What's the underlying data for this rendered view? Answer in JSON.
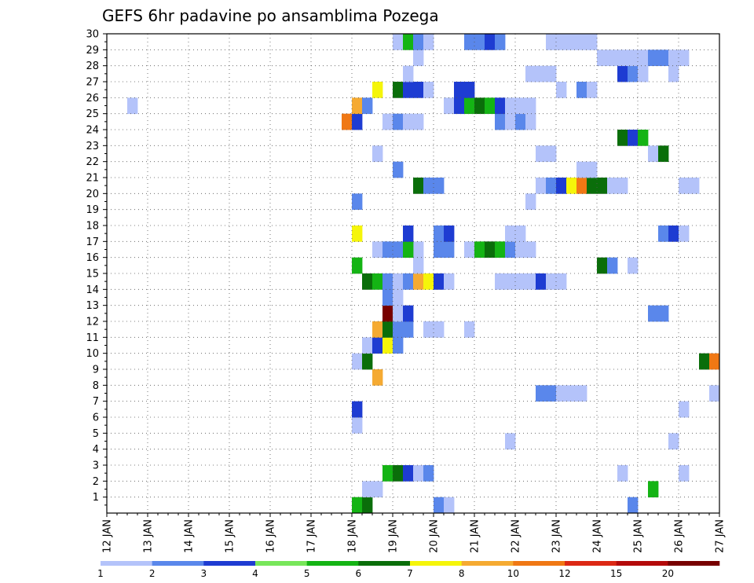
{
  "chart_data": {
    "type": "heatmap",
    "title": "GEFS 6hr padavine po ansamblima Pozega",
    "xlabel": "",
    "ylabel": "",
    "x_range": [
      "12 JAN 00Z",
      "27 JAN 00Z"
    ],
    "x_step": "6 hours",
    "y_range": [
      0,
      30
    ],
    "grid": true,
    "x_ticks": [
      "12 JAN",
      "13 JAN",
      "14 JAN",
      "15 JAN",
      "16 JAN",
      "17 JAN",
      "18 JAN",
      "19 JAN",
      "20 JAN",
      "21 JAN",
      "22 JAN",
      "23 JAN",
      "24 JAN",
      "25 JAN",
      "26 JAN",
      "27 JAN"
    ],
    "y_ticks": [
      "1",
      "2",
      "3",
      "4",
      "5",
      "6",
      "7",
      "8",
      "9",
      "10",
      "11",
      "12",
      "13",
      "14",
      "15",
      "16",
      "17",
      "18",
      "19",
      "20",
      "21",
      "22",
      "23",
      "24",
      "25",
      "26",
      "27",
      "28",
      "29",
      "30"
    ],
    "legend": {
      "labels": [
        "1",
        "2",
        "3",
        "4",
        "5",
        "6",
        "7",
        "8",
        "10",
        "12",
        "15",
        "20"
      ],
      "colors": [
        "#b4c3fa",
        "#5a87eb",
        "#1e3cd2",
        "#78e65a",
        "#14b414",
        "#0a6e0a",
        "#f5f50a",
        "#f5aa32",
        "#f07814",
        "#dc2814",
        "#b40a0a",
        "#780000"
      ]
    },
    "cells": [
      {
        "x": "18 JAN 00Z",
        "y": 0,
        "v": "5"
      },
      {
        "x": "18 JAN 06Z",
        "y": 0,
        "v": "6"
      },
      {
        "x": "20 JAN 00Z",
        "y": 0,
        "v": "2"
      },
      {
        "x": "20 JAN 06Z",
        "y": 0,
        "v": "1"
      },
      {
        "x": "24 JAN 18Z",
        "y": 0,
        "v": "2"
      },
      {
        "x": "18 JAN 06Z",
        "y": 1,
        "v": "1"
      },
      {
        "x": "18 JAN 12Z",
        "y": 1,
        "v": "1"
      },
      {
        "x": "25 JAN 06Z",
        "y": 1,
        "v": "5"
      },
      {
        "x": "18 JAN 18Z",
        "y": 2,
        "v": "5"
      },
      {
        "x": "19 JAN 00Z",
        "y": 2,
        "v": "6"
      },
      {
        "x": "19 JAN 06Z",
        "y": 2,
        "v": "3"
      },
      {
        "x": "19 JAN 12Z",
        "y": 2,
        "v": "1"
      },
      {
        "x": "19 JAN 18Z",
        "y": 2,
        "v": "2"
      },
      {
        "x": "24 JAN 12Z",
        "y": 2,
        "v": "1"
      },
      {
        "x": "26 JAN 00Z",
        "y": 2,
        "v": "1"
      },
      {
        "x": "21 JAN 18Z",
        "y": 4,
        "v": "1"
      },
      {
        "x": "25 JAN 18Z",
        "y": 4,
        "v": "1"
      },
      {
        "x": "18 JAN 00Z",
        "y": 5,
        "v": "1"
      },
      {
        "x": "18 JAN 00Z",
        "y": 6,
        "v": "3"
      },
      {
        "x": "26 JAN 00Z",
        "y": 6,
        "v": "1"
      },
      {
        "x": "22 JAN 12Z",
        "y": 7,
        "v": "2"
      },
      {
        "x": "22 JAN 18Z",
        "y": 7,
        "v": "2"
      },
      {
        "x": "23 JAN 00Z",
        "y": 7,
        "v": "1"
      },
      {
        "x": "23 JAN 06Z",
        "y": 7,
        "v": "1"
      },
      {
        "x": "23 JAN 12Z",
        "y": 7,
        "v": "1"
      },
      {
        "x": "26 JAN 18Z",
        "y": 7,
        "v": "1"
      },
      {
        "x": "18 JAN 12Z",
        "y": 8,
        "v": "8"
      },
      {
        "x": "18 JAN 00Z",
        "y": 9,
        "v": "1"
      },
      {
        "x": "18 JAN 06Z",
        "y": 9,
        "v": "6"
      },
      {
        "x": "26 JAN 12Z",
        "y": 9,
        "v": "6"
      },
      {
        "x": "26 JAN 18Z",
        "y": 9,
        "v": "10"
      },
      {
        "x": "18 JAN 06Z",
        "y": 10,
        "v": "1"
      },
      {
        "x": "18 JAN 12Z",
        "y": 10,
        "v": "3"
      },
      {
        "x": "18 JAN 18Z",
        "y": 10,
        "v": "7"
      },
      {
        "x": "19 JAN 00Z",
        "y": 10,
        "v": "2"
      },
      {
        "x": "18 JAN 12Z",
        "y": 11,
        "v": "8"
      },
      {
        "x": "18 JAN 18Z",
        "y": 11,
        "v": "6"
      },
      {
        "x": "19 JAN 00Z",
        "y": 11,
        "v": "2"
      },
      {
        "x": "19 JAN 06Z",
        "y": 11,
        "v": "2"
      },
      {
        "x": "19 JAN 18Z",
        "y": 11,
        "v": "1"
      },
      {
        "x": "20 JAN 00Z",
        "y": 11,
        "v": "1"
      },
      {
        "x": "20 JAN 18Z",
        "y": 11,
        "v": "1"
      },
      {
        "x": "18 JAN 18Z",
        "y": 12,
        "v": "20"
      },
      {
        "x": "19 JAN 00Z",
        "y": 12,
        "v": "1"
      },
      {
        "x": "19 JAN 06Z",
        "y": 12,
        "v": "3"
      },
      {
        "x": "25 JAN 06Z",
        "y": 12,
        "v": "2"
      },
      {
        "x": "25 JAN 12Z",
        "y": 12,
        "v": "2"
      },
      {
        "x": "18 JAN 18Z",
        "y": 13,
        "v": "2"
      },
      {
        "x": "19 JAN 00Z",
        "y": 13,
        "v": "1"
      },
      {
        "x": "18 JAN 06Z",
        "y": 14,
        "v": "6"
      },
      {
        "x": "18 JAN 12Z",
        "y": 14,
        "v": "5"
      },
      {
        "x": "18 JAN 18Z",
        "y": 14,
        "v": "2"
      },
      {
        "x": "19 JAN 00Z",
        "y": 14,
        "v": "1"
      },
      {
        "x": "19 JAN 06Z",
        "y": 14,
        "v": "2"
      },
      {
        "x": "19 JAN 12Z",
        "y": 14,
        "v": "8"
      },
      {
        "x": "19 JAN 18Z",
        "y": 14,
        "v": "7"
      },
      {
        "x": "20 JAN 00Z",
        "y": 14,
        "v": "3"
      },
      {
        "x": "20 JAN 06Z",
        "y": 14,
        "v": "1"
      },
      {
        "x": "21 JAN 12Z",
        "y": 14,
        "v": "1"
      },
      {
        "x": "21 JAN 18Z",
        "y": 14,
        "v": "1"
      },
      {
        "x": "22 JAN 00Z",
        "y": 14,
        "v": "1"
      },
      {
        "x": "22 JAN 06Z",
        "y": 14,
        "v": "1"
      },
      {
        "x": "22 JAN 12Z",
        "y": 14,
        "v": "3"
      },
      {
        "x": "22 JAN 18Z",
        "y": 14,
        "v": "1"
      },
      {
        "x": "23 JAN 00Z",
        "y": 14,
        "v": "1"
      },
      {
        "x": "18 JAN 00Z",
        "y": 15,
        "v": "5"
      },
      {
        "x": "19 JAN 12Z",
        "y": 15,
        "v": "1"
      },
      {
        "x": "24 JAN 00Z",
        "y": 15,
        "v": "6"
      },
      {
        "x": "24 JAN 06Z",
        "y": 15,
        "v": "2"
      },
      {
        "x": "24 JAN 18Z",
        "y": 15,
        "v": "1"
      },
      {
        "x": "19 JAN 12Z",
        "y": 16,
        "v": "1"
      },
      {
        "x": "18 JAN 12Z",
        "y": 16,
        "v": "1"
      },
      {
        "x": "18 JAN 18Z",
        "y": 16,
        "v": "2"
      },
      {
        "x": "19 JAN 00Z",
        "y": 16,
        "v": "2"
      },
      {
        "x": "19 JAN 06Z",
        "y": 16,
        "v": "5"
      },
      {
        "x": "20 JAN 00Z",
        "y": 16,
        "v": "2"
      },
      {
        "x": "20 JAN 06Z",
        "y": 16,
        "v": "2"
      },
      {
        "x": "20 JAN 18Z",
        "y": 16,
        "v": "1"
      },
      {
        "x": "21 JAN 00Z",
        "y": 16,
        "v": "5"
      },
      {
        "x": "21 JAN 06Z",
        "y": 16,
        "v": "6"
      },
      {
        "x": "21 JAN 12Z",
        "y": 16,
        "v": "5"
      },
      {
        "x": "21 JAN 18Z",
        "y": 16,
        "v": "2"
      },
      {
        "x": "22 JAN 00Z",
        "y": 16,
        "v": "1"
      },
      {
        "x": "22 JAN 06Z",
        "y": 16,
        "v": "1"
      },
      {
        "x": "18 JAN 00Z",
        "y": 17,
        "v": "7"
      },
      {
        "x": "19 JAN 06Z",
        "y": 17,
        "v": "3"
      },
      {
        "x": "20 JAN 00Z",
        "y": 17,
        "v": "2"
      },
      {
        "x": "20 JAN 06Z",
        "y": 17,
        "v": "3"
      },
      {
        "x": "21 JAN 18Z",
        "y": 17,
        "v": "1"
      },
      {
        "x": "22 JAN 00Z",
        "y": 17,
        "v": "1"
      },
      {
        "x": "25 JAN 12Z",
        "y": 17,
        "v": "2"
      },
      {
        "x": "25 JAN 18Z",
        "y": 17,
        "v": "3"
      },
      {
        "x": "26 JAN 00Z",
        "y": 17,
        "v": "1"
      },
      {
        "x": "18 JAN 00Z",
        "y": 19,
        "v": "2"
      },
      {
        "x": "22 JAN 06Z",
        "y": 19,
        "v": "1"
      },
      {
        "x": "19 JAN 12Z",
        "y": 20,
        "v": "6"
      },
      {
        "x": "19 JAN 18Z",
        "y": 20,
        "v": "2"
      },
      {
        "x": "20 JAN 00Z",
        "y": 20,
        "v": "2"
      },
      {
        "x": "22 JAN 12Z",
        "y": 20,
        "v": "1"
      },
      {
        "x": "22 JAN 18Z",
        "y": 20,
        "v": "2"
      },
      {
        "x": "23 JAN 00Z",
        "y": 20,
        "v": "3"
      },
      {
        "x": "23 JAN 06Z",
        "y": 20,
        "v": "7"
      },
      {
        "x": "23 JAN 12Z",
        "y": 20,
        "v": "10"
      },
      {
        "x": "23 JAN 18Z",
        "y": 20,
        "v": "6"
      },
      {
        "x": "24 JAN 00Z",
        "y": 20,
        "v": "6"
      },
      {
        "x": "24 JAN 06Z",
        "y": 20,
        "v": "1"
      },
      {
        "x": "24 JAN 12Z",
        "y": 20,
        "v": "1"
      },
      {
        "x": "26 JAN 00Z",
        "y": 20,
        "v": "1"
      },
      {
        "x": "26 JAN 06Z",
        "y": 20,
        "v": "1"
      },
      {
        "x": "19 JAN 00Z",
        "y": 21,
        "v": "2"
      },
      {
        "x": "23 JAN 12Z",
        "y": 21,
        "v": "1"
      },
      {
        "x": "23 JAN 18Z",
        "y": 21,
        "v": "1"
      },
      {
        "x": "18 JAN 12Z",
        "y": 22,
        "v": "1"
      },
      {
        "x": "22 JAN 12Z",
        "y": 22,
        "v": "1"
      },
      {
        "x": "22 JAN 18Z",
        "y": 22,
        "v": "1"
      },
      {
        "x": "25 JAN 06Z",
        "y": 22,
        "v": "1"
      },
      {
        "x": "25 JAN 12Z",
        "y": 22,
        "v": "6"
      },
      {
        "x": "24 JAN 12Z",
        "y": 23,
        "v": "6"
      },
      {
        "x": "24 JAN 18Z",
        "y": 23,
        "v": "3"
      },
      {
        "x": "25 JAN 00Z",
        "y": 23,
        "v": "5"
      },
      {
        "x": "17 JAN 18Z",
        "y": 24,
        "v": "10"
      },
      {
        "x": "18 JAN 00Z",
        "y": 24,
        "v": "3"
      },
      {
        "x": "18 JAN 18Z",
        "y": 24,
        "v": "1"
      },
      {
        "x": "19 JAN 00Z",
        "y": 24,
        "v": "2"
      },
      {
        "x": "19 JAN 06Z",
        "y": 24,
        "v": "1"
      },
      {
        "x": "19 JAN 12Z",
        "y": 24,
        "v": "1"
      },
      {
        "x": "21 JAN 12Z",
        "y": 24,
        "v": "2"
      },
      {
        "x": "21 JAN 18Z",
        "y": 24,
        "v": "1"
      },
      {
        "x": "22 JAN 00Z",
        "y": 24,
        "v": "2"
      },
      {
        "x": "22 JAN 06Z",
        "y": 24,
        "v": "1"
      },
      {
        "x": "12 JAN 12Z",
        "y": 25,
        "v": "1"
      },
      {
        "x": "18 JAN 00Z",
        "y": 25,
        "v": "8"
      },
      {
        "x": "18 JAN 06Z",
        "y": 25,
        "v": "2"
      },
      {
        "x": "20 JAN 06Z",
        "y": 25,
        "v": "1"
      },
      {
        "x": "20 JAN 12Z",
        "y": 25,
        "v": "3"
      },
      {
        "x": "20 JAN 18Z",
        "y": 25,
        "v": "5"
      },
      {
        "x": "21 JAN 00Z",
        "y": 25,
        "v": "6"
      },
      {
        "x": "21 JAN 06Z",
        "y": 25,
        "v": "5"
      },
      {
        "x": "21 JAN 12Z",
        "y": 25,
        "v": "3"
      },
      {
        "x": "21 JAN 18Z",
        "y": 25,
        "v": "1"
      },
      {
        "x": "22 JAN 00Z",
        "y": 25,
        "v": "1"
      },
      {
        "x": "22 JAN 06Z",
        "y": 25,
        "v": "1"
      },
      {
        "x": "18 JAN 12Z",
        "y": 26,
        "v": "7"
      },
      {
        "x": "19 JAN 00Z",
        "y": 26,
        "v": "6"
      },
      {
        "x": "19 JAN 06Z",
        "y": 26,
        "v": "3"
      },
      {
        "x": "19 JAN 12Z",
        "y": 26,
        "v": "3"
      },
      {
        "x": "19 JAN 18Z",
        "y": 26,
        "v": "1"
      },
      {
        "x": "20 JAN 12Z",
        "y": 26,
        "v": "3"
      },
      {
        "x": "20 JAN 18Z",
        "y": 26,
        "v": "3"
      },
      {
        "x": "23 JAN 00Z",
        "y": 26,
        "v": "1"
      },
      {
        "x": "23 JAN 12Z",
        "y": 26,
        "v": "2"
      },
      {
        "x": "23 JAN 18Z",
        "y": 26,
        "v": "1"
      },
      {
        "x": "19 JAN 06Z",
        "y": 27,
        "v": "1"
      },
      {
        "x": "22 JAN 06Z",
        "y": 27,
        "v": "1"
      },
      {
        "x": "22 JAN 12Z",
        "y": 27,
        "v": "1"
      },
      {
        "x": "22 JAN 18Z",
        "y": 27,
        "v": "1"
      },
      {
        "x": "24 JAN 12Z",
        "y": 27,
        "v": "3"
      },
      {
        "x": "24 JAN 18Z",
        "y": 27,
        "v": "2"
      },
      {
        "x": "25 JAN 00Z",
        "y": 27,
        "v": "1"
      },
      {
        "x": "25 JAN 18Z",
        "y": 27,
        "v": "1"
      },
      {
        "x": "19 JAN 12Z",
        "y": 28,
        "v": "1"
      },
      {
        "x": "24 JAN 00Z",
        "y": 28,
        "v": "1"
      },
      {
        "x": "24 JAN 06Z",
        "y": 28,
        "v": "1"
      },
      {
        "x": "24 JAN 12Z",
        "y": 28,
        "v": "1"
      },
      {
        "x": "24 JAN 18Z",
        "y": 28,
        "v": "1"
      },
      {
        "x": "25 JAN 00Z",
        "y": 28,
        "v": "1"
      },
      {
        "x": "25 JAN 06Z",
        "y": 28,
        "v": "2"
      },
      {
        "x": "25 JAN 12Z",
        "y": 28,
        "v": "2"
      },
      {
        "x": "25 JAN 18Z",
        "y": 28,
        "v": "1"
      },
      {
        "x": "26 JAN 00Z",
        "y": 28,
        "v": "1"
      },
      {
        "x": "19 JAN 00Z",
        "y": 29,
        "v": "1"
      },
      {
        "x": "19 JAN 06Z",
        "y": 29,
        "v": "5"
      },
      {
        "x": "19 JAN 12Z",
        "y": 29,
        "v": "2"
      },
      {
        "x": "19 JAN 18Z",
        "y": 29,
        "v": "1"
      },
      {
        "x": "20 JAN 18Z",
        "y": 29,
        "v": "2"
      },
      {
        "x": "21 JAN 00Z",
        "y": 29,
        "v": "2"
      },
      {
        "x": "21 JAN 06Z",
        "y": 29,
        "v": "3"
      },
      {
        "x": "21 JAN 12Z",
        "y": 29,
        "v": "2"
      },
      {
        "x": "22 JAN 18Z",
        "y": 29,
        "v": "1"
      },
      {
        "x": "23 JAN 00Z",
        "y": 29,
        "v": "1"
      },
      {
        "x": "23 JAN 06Z",
        "y": 29,
        "v": "1"
      },
      {
        "x": "23 JAN 12Z",
        "y": 29,
        "v": "1"
      },
      {
        "x": "23 JAN 18Z",
        "y": 29,
        "v": "1"
      }
    ]
  }
}
